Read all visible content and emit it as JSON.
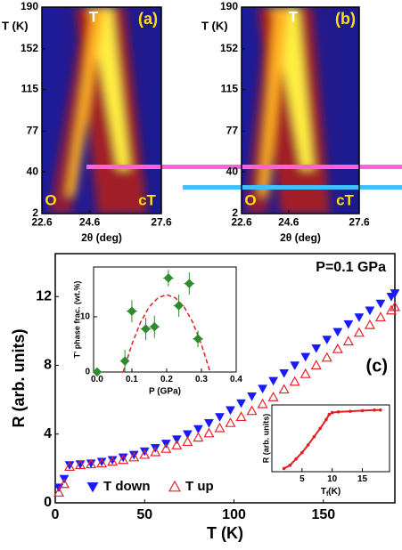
{
  "chart_data": [
    {
      "type": "heatmap",
      "panel_label": "(a)",
      "xlabel": "2θ (deg)",
      "ylabel": "T (K)",
      "xlim": [
        22.6,
        27.6
      ],
      "xticks": [
        22.6,
        24.6,
        27.6
      ],
      "ylim": [
        2,
        190
      ],
      "yticks": [
        190,
        152,
        115,
        77,
        40,
        2
      ],
      "annotations": [
        "T",
        "O",
        "cT"
      ]
    },
    {
      "type": "heatmap",
      "panel_label": "(b)",
      "xlabel": "2θ (deg)",
      "ylabel": "T (K)",
      "xlim": [
        22.6,
        27.6
      ],
      "xticks": [
        22.6,
        24.6,
        27.6
      ],
      "ylim": [
        2,
        190
      ],
      "yticks": [
        190,
        152,
        115,
        77,
        40,
        2
      ],
      "annotations": [
        "T",
        "O",
        "cT"
      ]
    },
    {
      "type": "scatter",
      "panel_label": "(c)",
      "annotation": "P=0.1 GPa",
      "xlabel": "T (K)",
      "ylabel": "R (arb. units)",
      "xlim": [
        0,
        190
      ],
      "xticks": [
        0,
        50,
        100,
        150
      ],
      "ylim": [
        0,
        14.5
      ],
      "yticks": [
        0,
        4,
        8,
        12
      ],
      "legend": "lower left",
      "x": [
        2,
        5,
        8,
        14,
        20,
        26,
        32,
        38,
        44,
        50,
        56,
        62,
        68,
        74,
        80,
        86,
        92,
        98,
        104,
        110,
        116,
        122,
        128,
        134,
        140,
        146,
        152,
        158,
        164,
        170,
        176,
        182,
        188,
        190
      ],
      "series": [
        {
          "name": "T down",
          "color": "#1a1aff",
          "marker": "triangle-down",
          "filled": true,
          "values": [
            0.9,
            1.4,
            2.2,
            2.25,
            2.3,
            2.4,
            2.5,
            2.65,
            2.8,
            3.0,
            3.2,
            3.45,
            3.7,
            4.0,
            4.3,
            4.65,
            5.0,
            5.4,
            5.8,
            6.2,
            6.65,
            7.1,
            7.55,
            8.0,
            8.5,
            9.0,
            9.5,
            9.95,
            10.4,
            10.8,
            11.2,
            11.6,
            12.0,
            12.2
          ]
        },
        {
          "name": "T up",
          "color": "#e8202a",
          "marker": "triangle-up",
          "filled": false,
          "values": [
            0.6,
            1.1,
            2.1,
            2.2,
            2.25,
            2.3,
            2.4,
            2.5,
            2.65,
            2.8,
            2.95,
            3.15,
            3.35,
            3.55,
            3.8,
            4.05,
            4.35,
            4.65,
            5.0,
            5.35,
            5.75,
            6.15,
            6.6,
            7.05,
            7.5,
            8.0,
            8.45,
            8.95,
            9.4,
            9.9,
            10.35,
            10.8,
            11.2,
            11.4
          ]
        }
      ]
    },
    {
      "type": "errorbar",
      "xlabel": "P (GPa)",
      "ylabel": "T' phase frac. (wt.%)",
      "xlim": [
        -0.01,
        0.4
      ],
      "xticks": [
        {
          "value": 0,
          "label": "0.0"
        },
        0.1,
        0.2,
        0.3,
        0.4
      ],
      "ylim": [
        0,
        19
      ],
      "yticks": [
        0,
        10
      ],
      "x": [
        0.0,
        0.08,
        0.1,
        0.14,
        0.165,
        0.205,
        0.235,
        0.265,
        0.29
      ],
      "series": [
        {
          "color": "#2e8b2e",
          "marker": "diamond",
          "values": [
            0,
            2,
            11,
            7.8,
            8.2,
            17,
            12,
            16,
            6
          ],
          "errors": [
            0.5,
            2,
            2,
            2,
            2,
            1.5,
            2,
            2,
            1.5
          ],
          "xerrors": [
            0.008,
            0.01,
            0.015,
            0.015,
            0.015,
            0.015,
            0.015,
            0.015,
            0.015
          ]
        }
      ],
      "fit": {
        "color": "#e02020",
        "x": [
          0.075,
          0.1,
          0.125,
          0.15,
          0.175,
          0.2,
          0.225,
          0.25,
          0.275,
          0.3,
          0.325
        ],
        "values": [
          0,
          5.0,
          9.0,
          11.8,
          13.4,
          14,
          13.4,
          11.8,
          9.0,
          5.0,
          0
        ]
      }
    },
    {
      "type": "line",
      "xlabel_parts": [
        "T",
        "f",
        "(K)"
      ],
      "ylabel": "R (arb. units)",
      "xlim": [
        0,
        19.5
      ],
      "xticks": [
        5,
        10,
        15
      ],
      "ylim": [
        0,
        1.05
      ],
      "x": [
        2,
        3,
        4,
        5,
        6,
        7,
        8,
        9,
        9.5,
        10,
        11,
        13,
        15,
        17,
        18
      ],
      "series": [
        {
          "color": "#e02020",
          "values": [
            0.05,
            0.1,
            0.2,
            0.3,
            0.42,
            0.55,
            0.68,
            0.82,
            0.9,
            0.93,
            0.94,
            0.95,
            0.96,
            0.97,
            0.97
          ]
        }
      ]
    }
  ]
}
